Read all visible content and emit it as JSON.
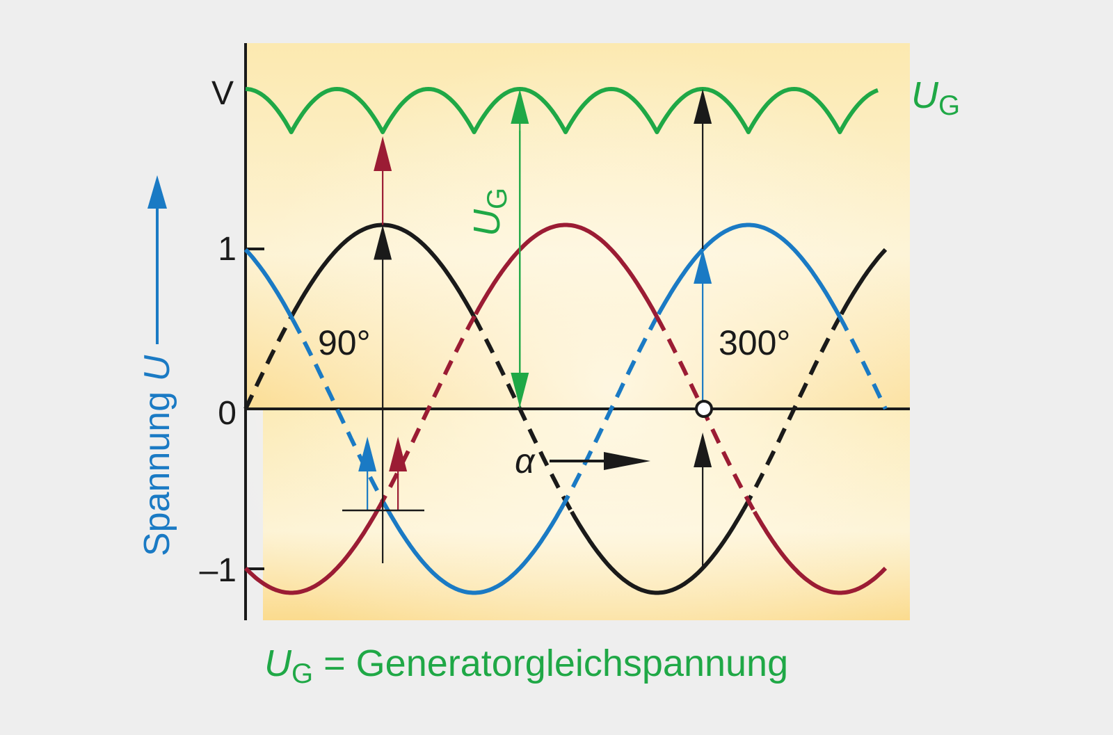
{
  "chart_data": {
    "type": "line",
    "y_label": {
      "text": "Spannung ",
      "variable": "U",
      "arrow": "⟶"
    },
    "y_ticks": [
      "V",
      "1",
      "0",
      "–1"
    ],
    "x_axis_symbol": "α",
    "angle_labels": [
      "90°",
      "300°"
    ],
    "ug_label": {
      "main": "U",
      "sub": "G"
    },
    "ug_arrow_label": {
      "main": "U",
      "sub": "G"
    },
    "caption": {
      "main": "U",
      "sub": "G",
      "rest": " = Generatorgleichspannung"
    },
    "series": [
      {
        "color": "#1a1a1a",
        "phase_deg": 90,
        "amplitude": 1.15
      },
      {
        "color": "#1a7ac4",
        "phase_deg": 330,
        "amplitude": 1.15
      },
      {
        "color": "#9b1c34",
        "phase_deg": 210,
        "amplitude": 1.15
      }
    ],
    "rectified_peak": 1.99,
    "rectified_min": 1.72,
    "x_range_deg": [
      0,
      420
    ],
    "y_range": [
      -1.15,
      2.0
    ]
  },
  "colors": {
    "background": "#eeeeee",
    "plot_background_top": "#fce9b0",
    "plot_background_mid": "#fdf3d4",
    "plot_background_bottom": "#fbdb8e",
    "green": "#1fa846",
    "blue": "#1a7ac4",
    "red": "#9b1c34",
    "black": "#1a1a1a"
  }
}
